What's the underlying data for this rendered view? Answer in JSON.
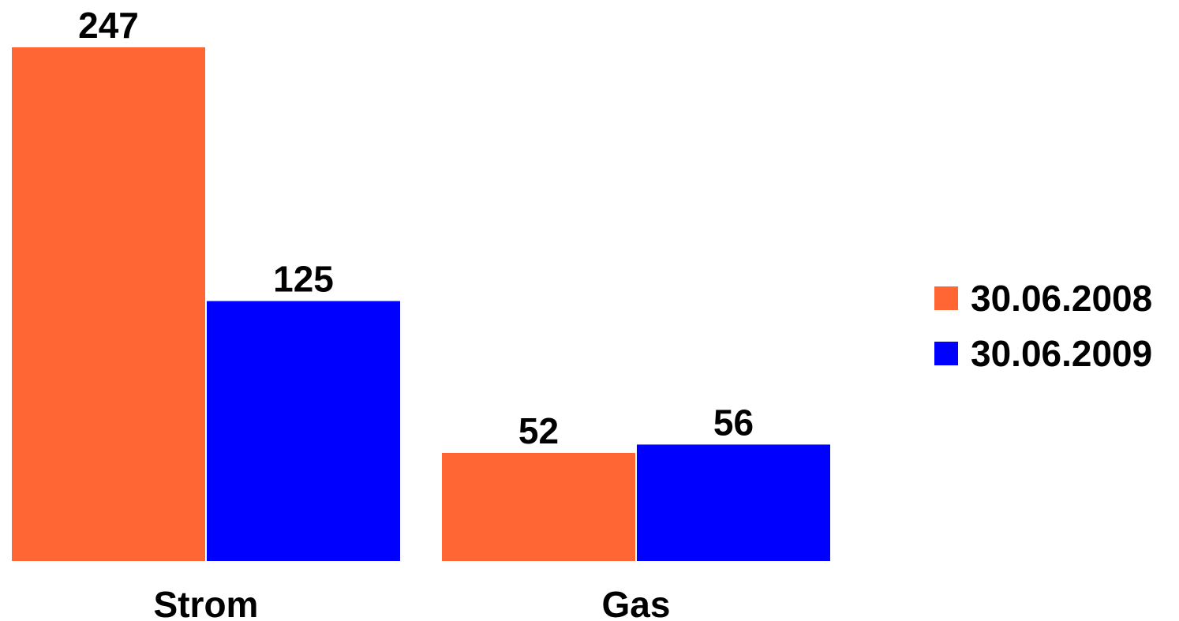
{
  "chart_data": {
    "type": "bar",
    "categories": [
      "Strom",
      "Gas"
    ],
    "series": [
      {
        "name": "30.06.2008",
        "values": [
          247,
          52
        ],
        "color": "#FF6633"
      },
      {
        "name": "30.06.2009",
        "values": [
          125,
          56
        ],
        "color": "#0000FF"
      }
    ],
    "ylim": [
      0,
      247
    ],
    "grid": false,
    "legend": "right",
    "data_labels": true
  }
}
